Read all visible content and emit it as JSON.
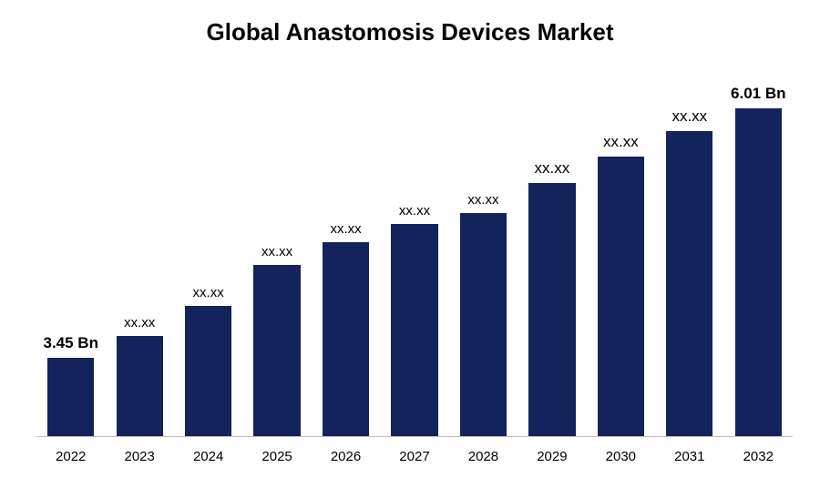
{
  "chart": {
    "type": "bar",
    "title": "Global Anastomosis Devices Market",
    "title_fontsize": 26,
    "title_fontweight": 700,
    "title_color": "#000000",
    "background_color": "#ffffff",
    "bar_color": "#12245b",
    "axis_line_color": "#bfbfbf",
    "bar_width_ratio": 0.68,
    "x_label_fontsize": 15,
    "data_label_fontsize_small": 15,
    "data_label_fontsize_large": 17,
    "categories": [
      "2022",
      "2023",
      "2024",
      "2025",
      "2026",
      "2027",
      "2028",
      "2029",
      "2030",
      "2031",
      "2032"
    ],
    "values": [
      21,
      27,
      35,
      46,
      52,
      57,
      60,
      68,
      75,
      82,
      88
    ],
    "labels": [
      "3.45 Bn",
      "xx.xx",
      "xx.xx",
      "xx.xx",
      "xx.xx",
      "xx.xx",
      "xx.xx",
      "xx.xx",
      "xx.xx",
      "xx.xx",
      "6.01 Bn"
    ],
    "label_bold": [
      true,
      false,
      false,
      false,
      false,
      false,
      false,
      false,
      false,
      false,
      true
    ],
    "label_large": [
      true,
      false,
      false,
      false,
      false,
      false,
      false,
      true,
      true,
      true,
      true
    ]
  }
}
